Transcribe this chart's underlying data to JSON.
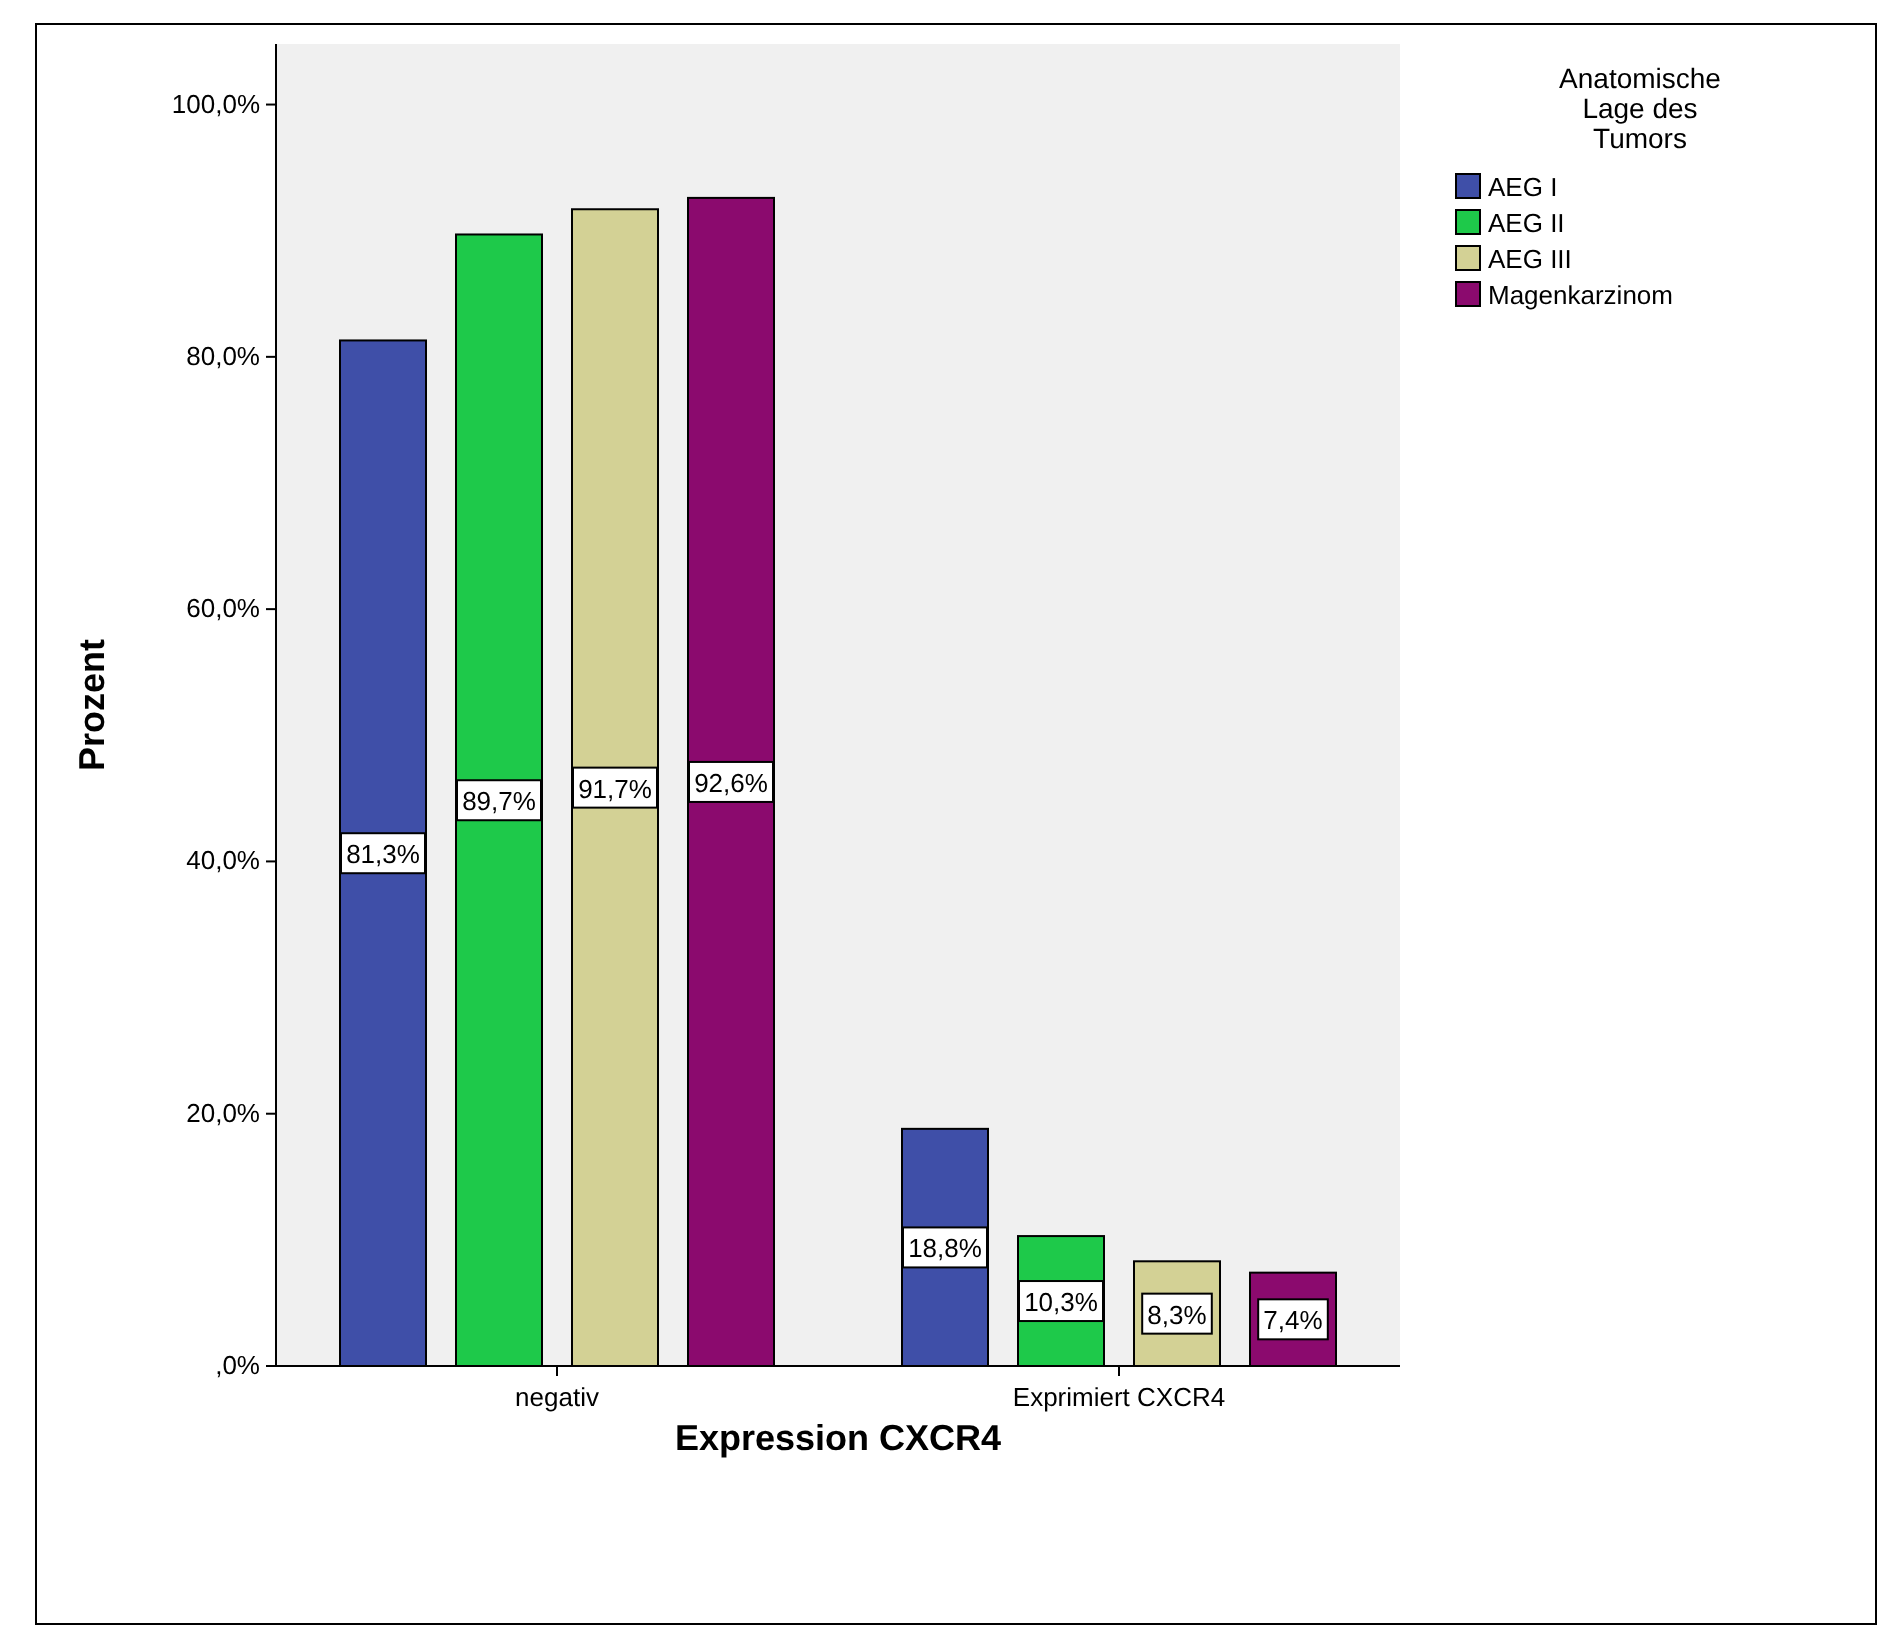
{
  "chart_data": {
    "type": "bar",
    "xlabel": "Expression CXCR4",
    "ylabel": "Prozent",
    "legend_title": "Anatomische\nLage des\nTumors",
    "legend": "right",
    "categories": [
      "negativ",
      "Exprimiert CXCR4"
    ],
    "series": [
      {
        "name": "AEG I",
        "color": "#3f4fa8",
        "values": [
          81.3,
          18.8
        ],
        "value_labels": [
          "81,3%",
          "18,8%"
        ]
      },
      {
        "name": "AEG II",
        "color": "#1ec94a",
        "values": [
          89.7,
          10.3
        ],
        "value_labels": [
          "89,7%",
          "10,3%"
        ]
      },
      {
        "name": "AEG III",
        "color": "#d3d195",
        "values": [
          91.7,
          8.3
        ],
        "value_labels": [
          "91,7%",
          "8,3%"
        ]
      },
      {
        "name": "Magenkarzinom",
        "color": "#8b0a6e",
        "values": [
          92.6,
          7.4
        ],
        "value_labels": [
          "92,6%",
          "7,4%"
        ]
      }
    ],
    "ylim": [
      0,
      104.8
    ],
    "yticks": [
      {
        "value": 0,
        "label": ",0%"
      },
      {
        "value": 20,
        "label": "20,0%"
      },
      {
        "value": 40,
        "label": "40,0%"
      },
      {
        "value": 60,
        "label": "60,0%"
      },
      {
        "value": 80,
        "label": "80,0%"
      },
      {
        "value": 100,
        "label": "100,0%"
      }
    ]
  }
}
